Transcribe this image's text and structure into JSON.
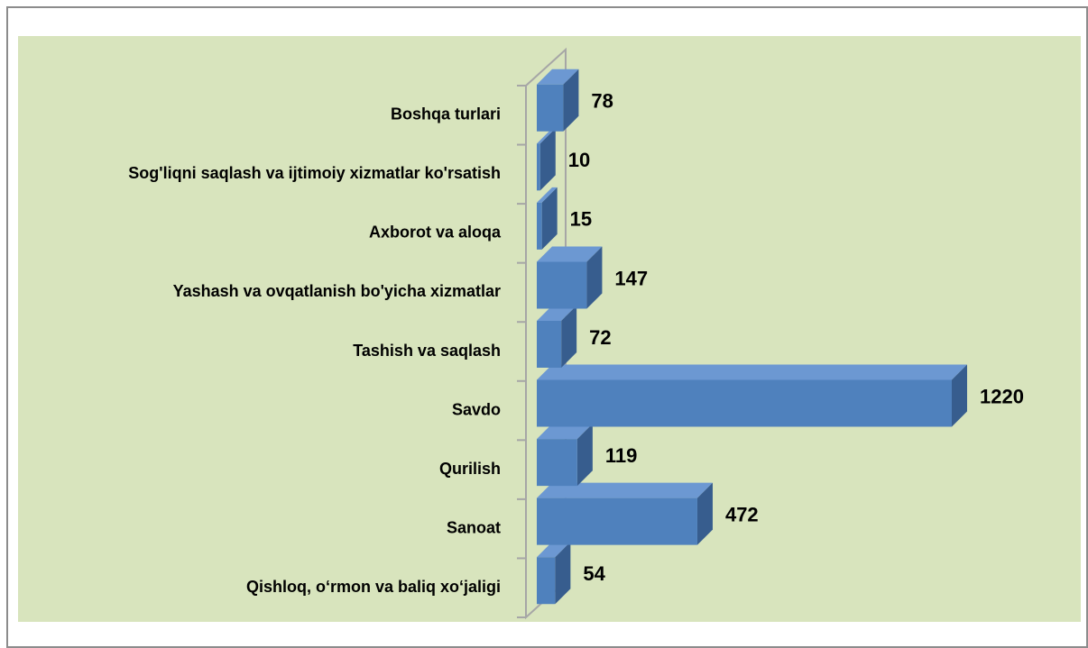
{
  "chart_data": {
    "type": "bar3d",
    "orientation": "horizontal",
    "categories": [
      "Qishloq, o‘rmon va baliq xo‘jaligi",
      "Sanoat",
      "Qurilish",
      "Savdo",
      "Tashish va saqlash",
      "Yashash va ovqatlanish bo'yicha xizmatlar",
      "Axborot va aloqa",
      "Sog'liqni saqlash va ijtimoiy xizmatlar ko'rsatish",
      "Boshqa turlari"
    ],
    "values": [
      54,
      472,
      119,
      1220,
      72,
      147,
      15,
      10,
      78
    ],
    "color": "#4f81bd"
  }
}
